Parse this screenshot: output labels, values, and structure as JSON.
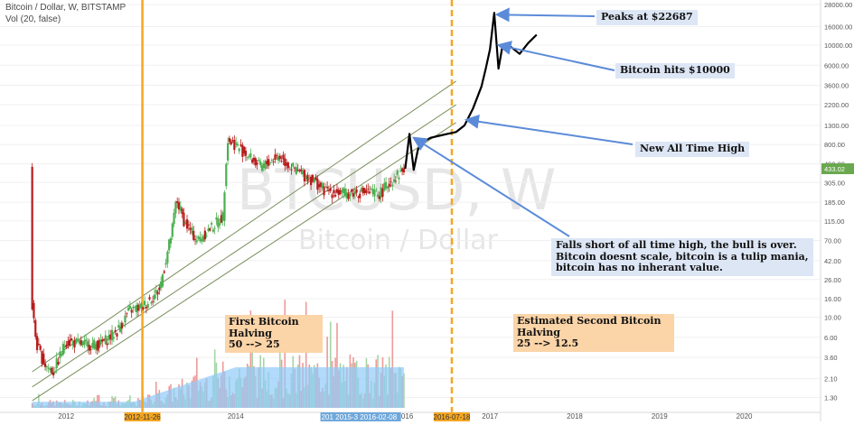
{
  "header": {
    "symbol_line": "Bitcoin / Dollar, W, BITSTAMP",
    "volume_line": "Vol (20, false)"
  },
  "watermark": {
    "ticker": "BTCUSD, W",
    "name": "Bitcoin / Dollar"
  },
  "price_tag": "433.02",
  "colors": {
    "up": "#4caf50",
    "down": "#b71c1c",
    "vol_up": "#a5d6a7",
    "vol_down": "#ef9a9a",
    "vol_ma": "#90caf9",
    "halving": "#f5a623",
    "arrow": "#5b8bd8",
    "channel": "#7a8f5c"
  },
  "annotations": {
    "peak": "Peaks at $22687",
    "hits10k": "Bitcoin hits $10000",
    "new_ath": "New All Time High",
    "bear": [
      "Falls short of all time high, the bull is over.",
      "Bitcoin doesnt scale, bitcoin is a tulip mania,",
      "bitcoin has no inherant value."
    ],
    "halving1": [
      "First Bitcoin Halving",
      "50 --> 25"
    ],
    "halving2": [
      "Estimated Second Bitcoin Halving",
      "25 --> 12.5"
    ]
  },
  "x_axis": {
    "years": [
      "2012",
      "2014",
      "2016",
      "2017",
      "2018",
      "2019",
      "2020"
    ],
    "date_tags": [
      "2012-11-26",
      "2016-07-18"
    ],
    "range_tag": "2015-3",
    "range_tag_2": "2016-02-08",
    "range_tag_3": "201"
  },
  "chart_data": {
    "type": "line",
    "title": "Bitcoin / Dollar, W, BITSTAMP",
    "y_scale": "log",
    "y_ticks": [
      "28000.00",
      "16000.00",
      "10000.00",
      "6000.00",
      "3600.00",
      "2200.00",
      "1300.00",
      "800.00",
      "490.00",
      "305.00",
      "185.00",
      "115.00",
      "70.00",
      "42.00",
      "26.00",
      "16.00",
      "10.00",
      "6.00",
      "3.60",
      "2.10",
      "1.30"
    ],
    "x_ticks": [
      "2012",
      "2014",
      "2016",
      "2017",
      "2018",
      "2019",
      "2020"
    ],
    "series": [
      {
        "kind": "price",
        "x": [
          2011.6,
          2011.65,
          2011.75,
          2011.85,
          2012.0,
          2012.2,
          2012.4,
          2012.6,
          2012.75,
          2012.9,
          2013.1,
          2013.25,
          2013.3,
          2013.4,
          2013.55,
          2013.7,
          2013.85,
          2013.9,
          2014.0,
          2014.15,
          2014.3,
          2014.5,
          2014.7,
          2014.9,
          2015.05,
          2015.3,
          2015.5,
          2015.7,
          2015.85,
          2015.95,
          2016.0
        ],
        "y": [
          13,
          5,
          3,
          2.5,
          5.5,
          5,
          5,
          7,
          12,
          13,
          20,
          90,
          200,
          110,
          70,
          95,
          130,
          900,
          800,
          600,
          450,
          600,
          420,
          330,
          250,
          230,
          240,
          230,
          330,
          400,
          433
        ]
      },
      {
        "kind": "projection",
        "x": [
          2016.0,
          2016.05,
          2016.1,
          2016.15,
          2016.2,
          2016.25,
          2016.3,
          2016.4,
          2016.5,
          2016.6,
          2016.7,
          2016.8,
          2016.9,
          2016.95,
          2017.0,
          2017.05,
          2017.1,
          2017.15,
          2017.2,
          2017.25,
          2017.35,
          2017.45,
          2017.55
        ],
        "y": [
          433,
          1050,
          420,
          700,
          880,
          900,
          950,
          1000,
          1050,
          1100,
          1300,
          2000,
          3500,
          5500,
          9000,
          22687,
          5500,
          10000,
          10000,
          9500,
          8000,
          10500,
          13000
        ]
      }
    ],
    "channel": [
      {
        "x": [
          2011.6,
          2016.6
        ],
        "y": [
          2.5,
          4000
        ]
      },
      {
        "x": [
          2011.6,
          2016.6
        ],
        "y": [
          1.7,
          2200
        ]
      },
      {
        "x": [
          2011.6,
          2016.6
        ],
        "y": [
          1.2,
          1400
        ]
      }
    ],
    "halvings": [
      {
        "date": "2012-11-26",
        "x": 2012.9,
        "label": "First Bitcoin Halving 50 --> 25"
      },
      {
        "date": "2016-07-18",
        "x": 2016.55,
        "label": "Estimated Second Bitcoin Halving 25 --> 12.5"
      }
    ],
    "peak_value": 22687,
    "milestone_value": 10000,
    "last_price": 433.02
  }
}
